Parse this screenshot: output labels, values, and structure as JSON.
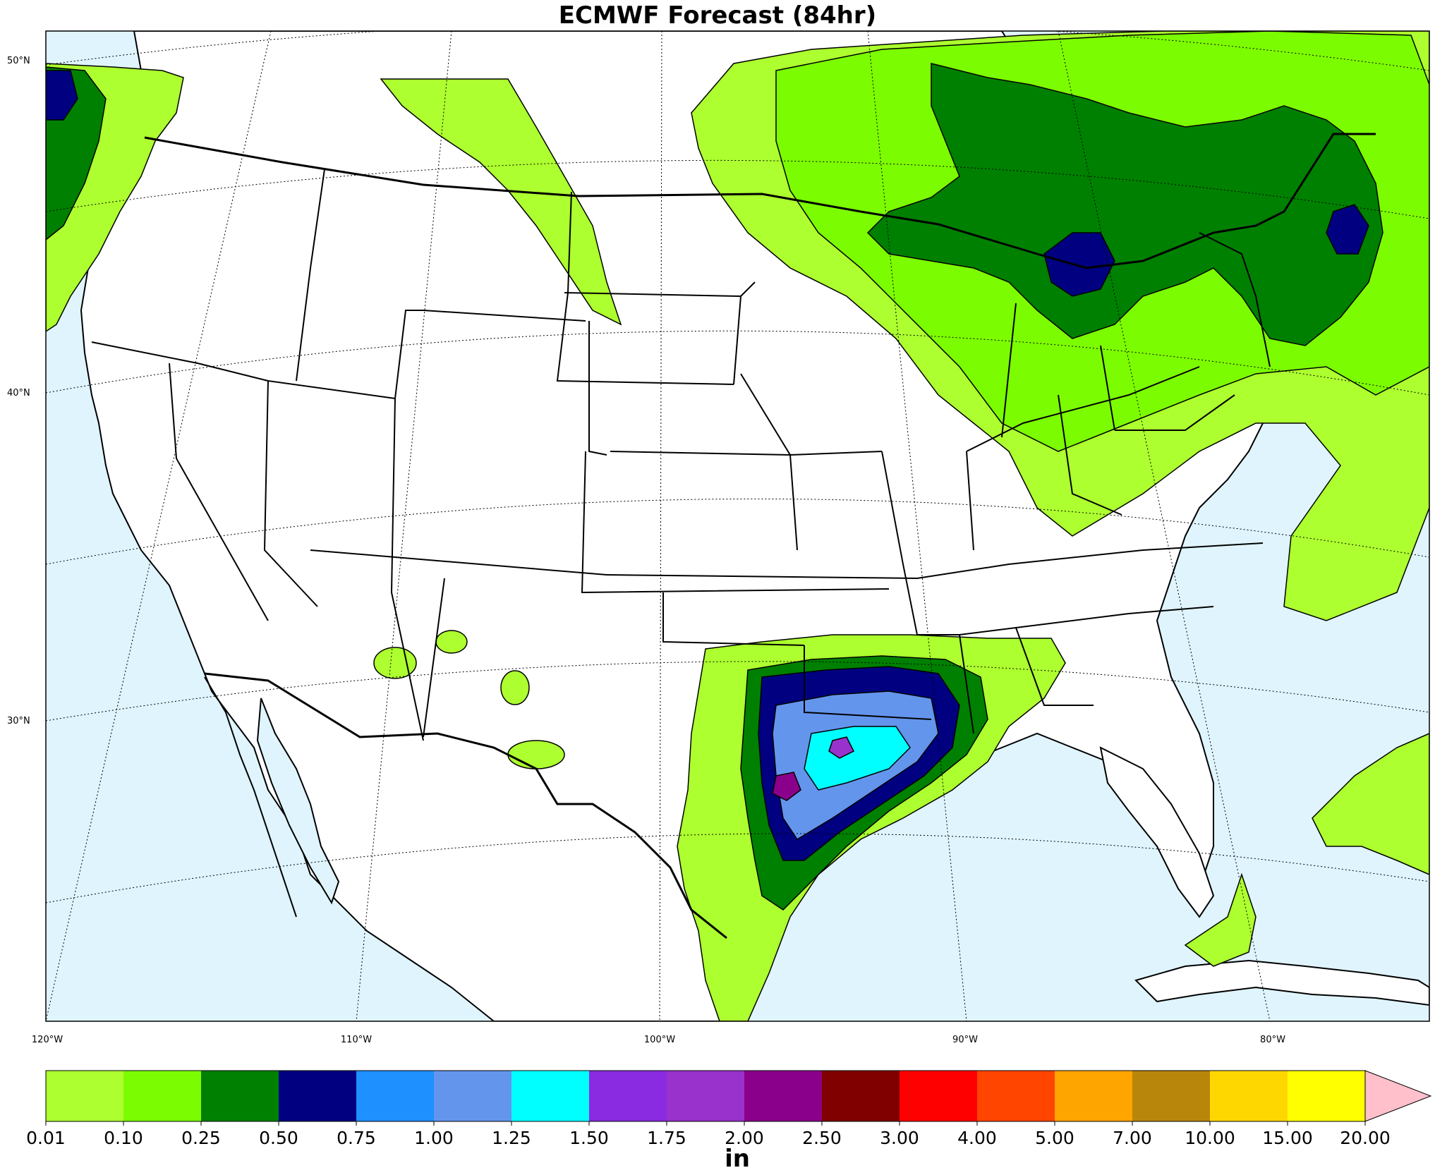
{
  "title": "ECMWF Forecast (84hr)",
  "lat_labels": [
    "50°N",
    "40°N",
    "30°N"
  ],
  "lon_labels": [
    "120°W",
    "110°W",
    "100°W",
    "90°W",
    "80°W"
  ],
  "colorbar": {
    "unit": "in",
    "ticks": [
      "0.01",
      "0.10",
      "0.25",
      "0.50",
      "0.75",
      "1.00",
      "1.25",
      "1.50",
      "1.75",
      "2.00",
      "2.50",
      "3.00",
      "4.00",
      "5.00",
      "7.00",
      "10.00",
      "15.00",
      "20.00"
    ],
    "colors": [
      "#adff2f",
      "#7cfc00",
      "#008000",
      "#000080",
      "#1e90ff",
      "#6495ed",
      "#00ffff",
      "#8a2be2",
      "#9932cc",
      "#8b008b",
      "#800000",
      "#ff0000",
      "#ff4500",
      "#ffa500",
      "#b8860b",
      "#ffd700",
      "#ffff00"
    ],
    "extend_color": "#ffc0cb"
  },
  "colors": {
    "ocean": "#dff4fd",
    "land": "#ffffff"
  }
}
